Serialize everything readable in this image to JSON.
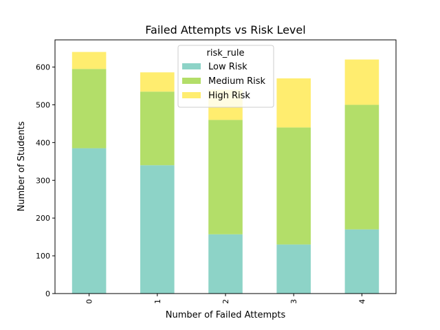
{
  "chart_data": {
    "type": "bar",
    "stacked": true,
    "title": "Failed Attempts vs Risk Level",
    "xlabel": "Number of Failed Attempts",
    "ylabel": "Number of Students",
    "categories": [
      "0",
      "1",
      "2",
      "3",
      "4"
    ],
    "series": [
      {
        "name": "Low Risk",
        "color": "#8dd3c7",
        "values": [
          385,
          340,
          157,
          130,
          170
        ]
      },
      {
        "name": "Medium Risk",
        "color": "#b3de69",
        "values": [
          210,
          195,
          303,
          310,
          330
        ]
      },
      {
        "name": "High Risk",
        "color": "#ffed6f",
        "values": [
          45,
          51,
          80,
          130,
          120
        ]
      }
    ],
    "ylim": [
      0,
      672
    ],
    "yticks": [
      "0",
      "100",
      "200",
      "300",
      "400",
      "500",
      "600"
    ],
    "grid": false,
    "legend": {
      "title": "risk_rule",
      "placement": "upper-center"
    }
  }
}
